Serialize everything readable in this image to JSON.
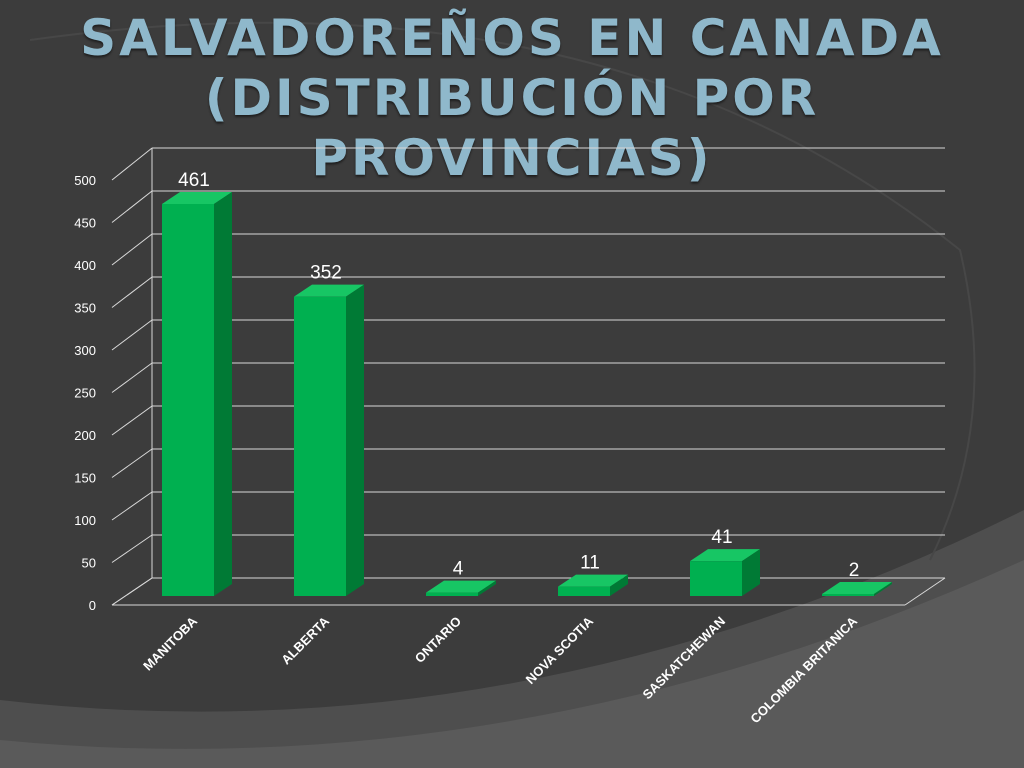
{
  "slide": {
    "title_line1": "Salvadoreños en Canada",
    "title_line2": "(distribución por provincias)"
  },
  "chart_data": {
    "type": "bar",
    "title": "",
    "xlabel": "",
    "ylabel": "",
    "categories": [
      "MANITOBA",
      "ALBERTA",
      "ONTARIO",
      "NOVA SCOTIA",
      "SASKATCHEWAN",
      "COLOMBIA BRITANICA"
    ],
    "values": [
      461,
      352,
      4,
      11,
      41,
      2
    ],
    "ylim": [
      0,
      500
    ],
    "yticks": [
      0,
      50,
      100,
      150,
      200,
      250,
      300,
      350,
      400,
      450,
      500
    ],
    "grid": true,
    "legend": "none",
    "three_d": true,
    "colors": {
      "bar_front": "#00b050",
      "bar_side": "#007a35",
      "bar_top": "#17c664",
      "grid": "#d9d9d9",
      "text": "#ffffff"
    }
  }
}
